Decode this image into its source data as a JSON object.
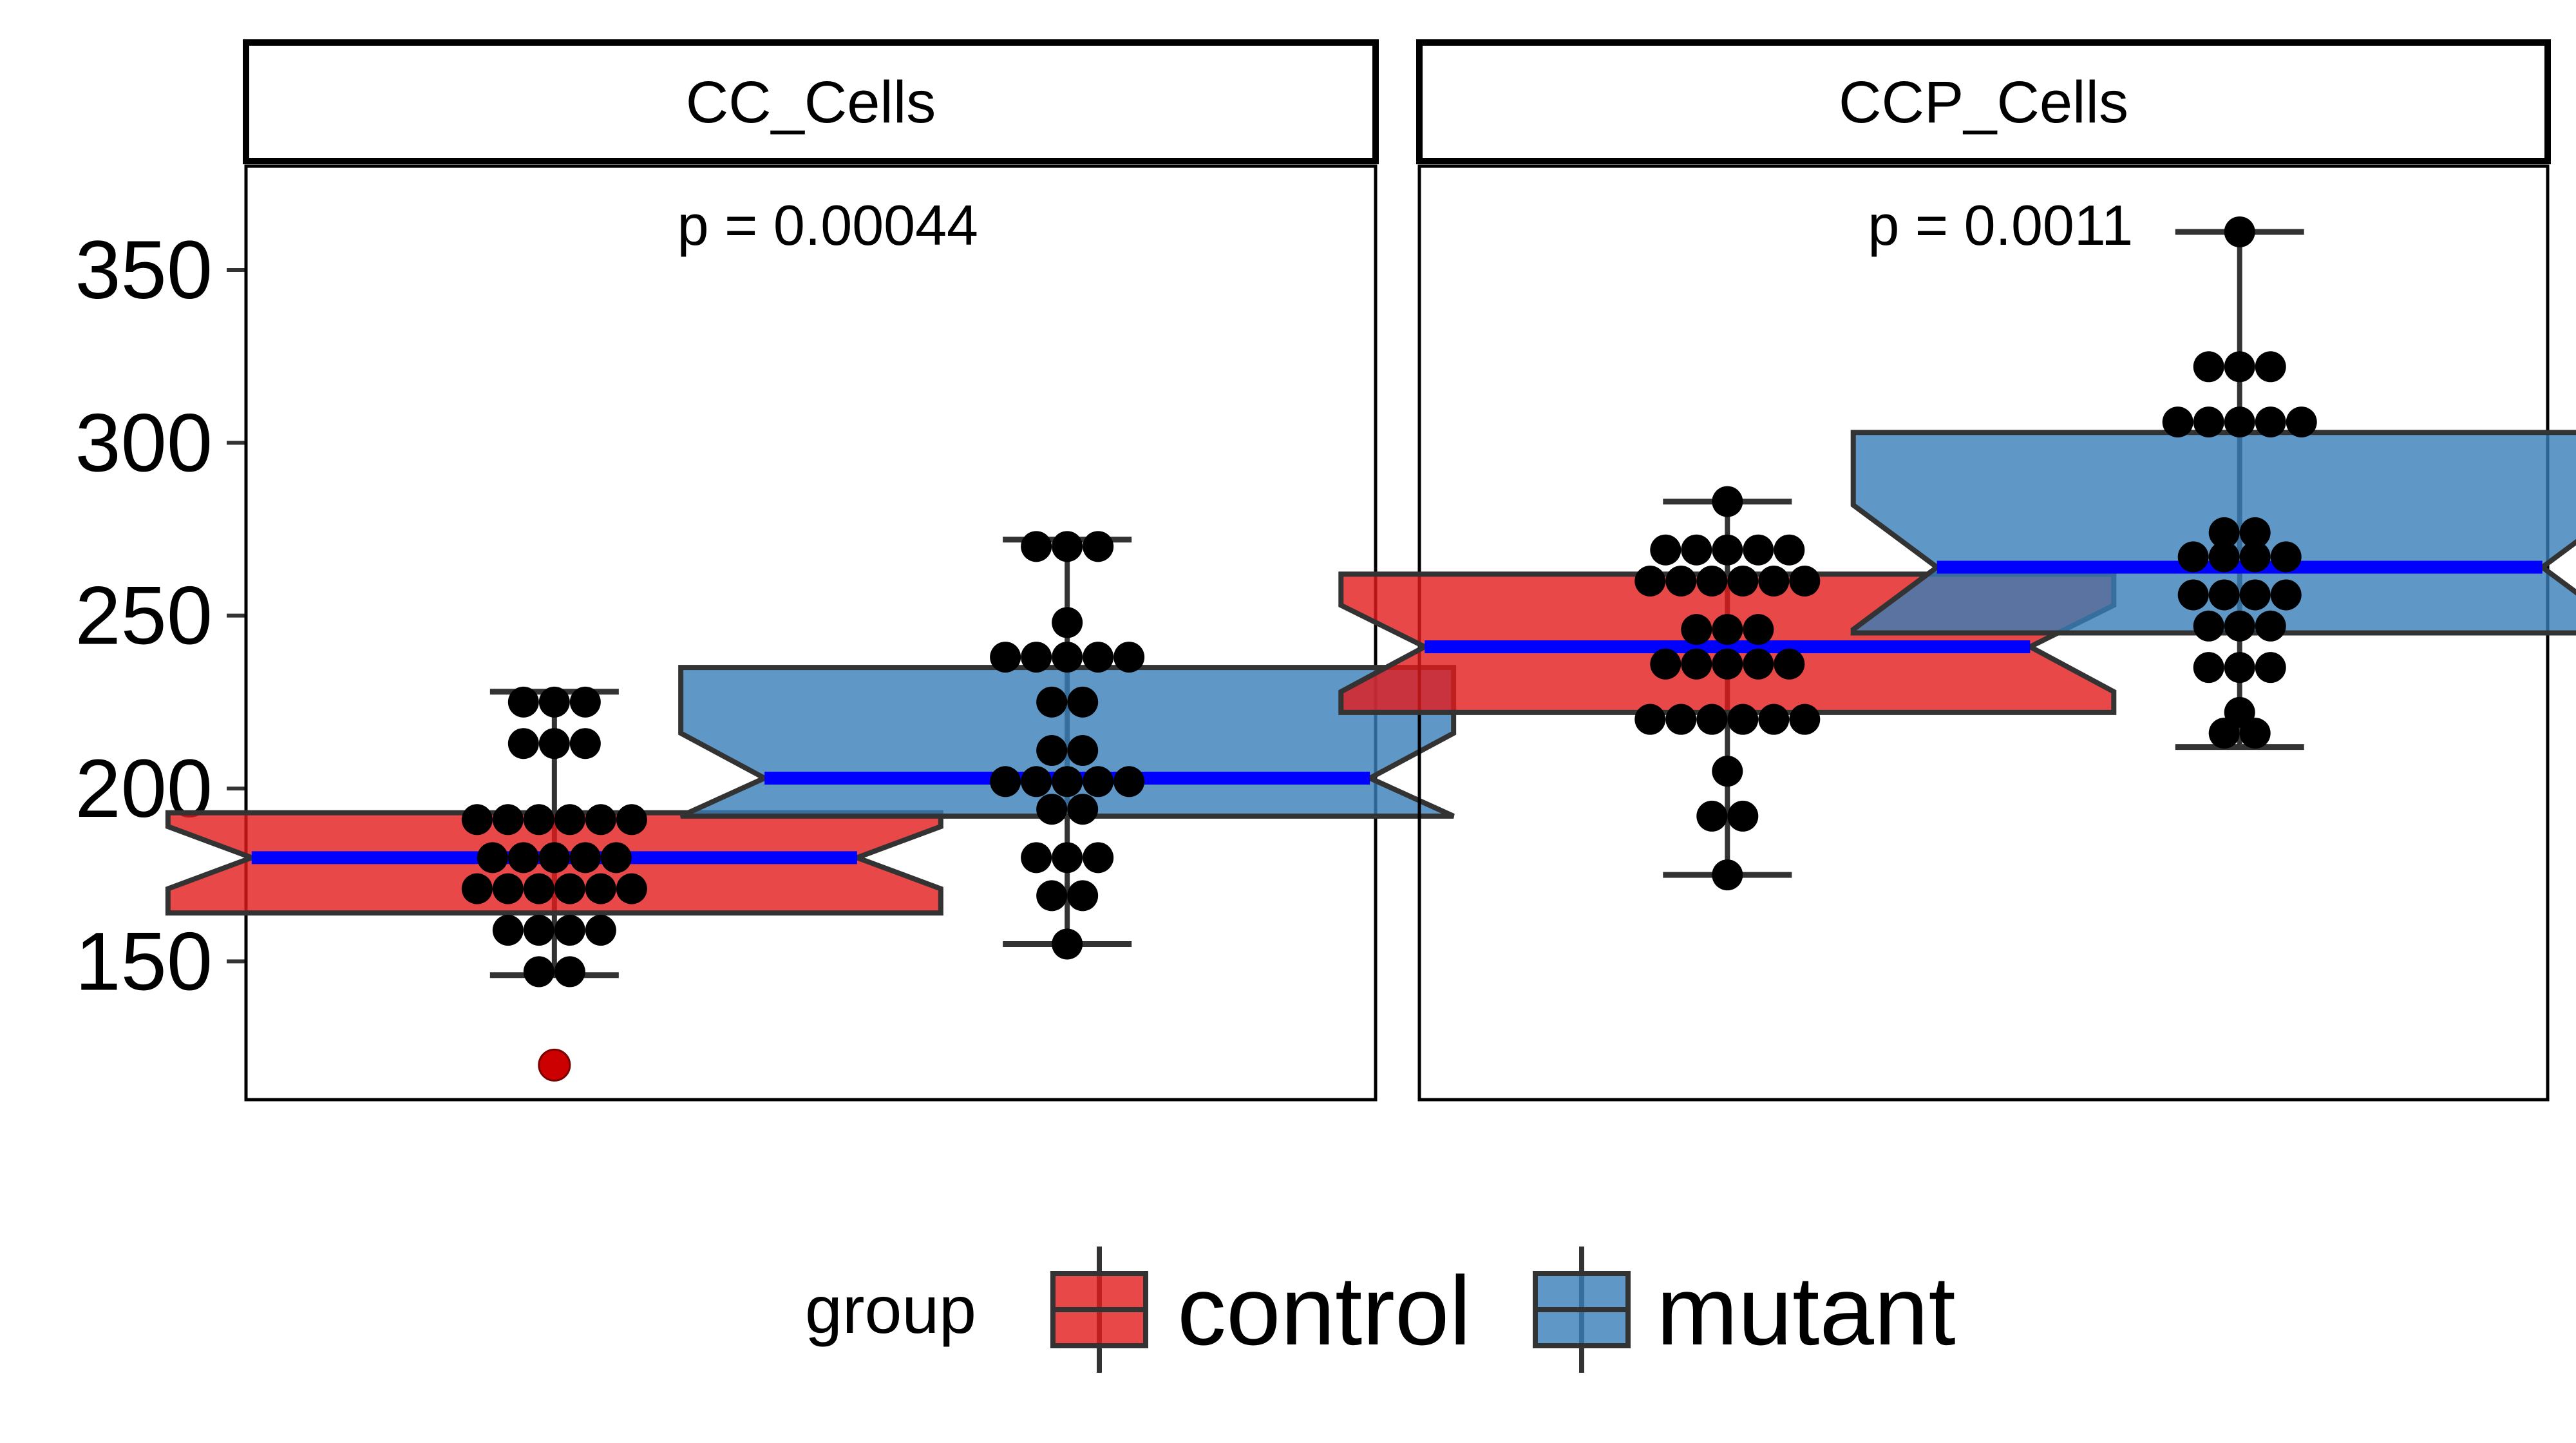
{
  "chart_data": {
    "type": "box",
    "y_ticks": [
      150,
      200,
      250,
      300,
      350
    ],
    "ylim": [
      110,
      380
    ],
    "xlabel": "",
    "ylabel": "",
    "grid": false,
    "notched": true,
    "legend": {
      "position": "bottom",
      "title": "group",
      "entries": [
        {
          "label": "control",
          "color": "#E41A1C"
        },
        {
          "label": "mutant",
          "color": "#377EB8"
        }
      ]
    },
    "colors": {
      "control": "#E41A1C",
      "mutant": "#377EB8",
      "median_line": "#0000FF",
      "outlier": "#CC0000",
      "points": "#000000"
    },
    "panels": [
      {
        "title": "CC_Cells",
        "p_label": "p = 0.00044",
        "groups": [
          {
            "name": "control",
            "whisker_low": 146,
            "q1": 164,
            "median": 180,
            "q3": 193,
            "whisker_high": 228,
            "notch_low": 171,
            "notch_high": 189,
            "outliers": [
              120
            ],
            "points": [
              {
                "y": 225,
                "n": 3
              },
              {
                "y": 213,
                "n": 3
              },
              {
                "y": 191,
                "n": 6
              },
              {
                "y": 180,
                "n": 5
              },
              {
                "y": 171,
                "n": 6
              },
              {
                "y": 159,
                "n": 4
              },
              {
                "y": 147,
                "n": 2
              }
            ]
          },
          {
            "name": "mutant",
            "whisker_low": 155,
            "q1": 192,
            "median": 203,
            "q3": 235,
            "whisker_high": 272,
            "notch_low": 192,
            "notch_high": 216,
            "outliers": [],
            "points": [
              {
                "y": 270,
                "n": 3
              },
              {
                "y": 248,
                "n": 1
              },
              {
                "y": 238,
                "n": 5
              },
              {
                "y": 225,
                "n": 2
              },
              {
                "y": 211,
                "n": 2
              },
              {
                "y": 202,
                "n": 5
              },
              {
                "y": 194,
                "n": 2
              },
              {
                "y": 180,
                "n": 3
              },
              {
                "y": 169,
                "n": 2
              },
              {
                "y": 155,
                "n": 1
              }
            ]
          }
        ]
      },
      {
        "title": "CCP_Cells",
        "p_label": "p = 0.0011",
        "groups": [
          {
            "name": "control",
            "whisker_low": 175,
            "q1": 222,
            "median": 241,
            "q3": 262,
            "whisker_high": 283,
            "notch_low": 228,
            "notch_high": 253,
            "outliers": [],
            "points": [
              {
                "y": 283,
                "n": 1
              },
              {
                "y": 269,
                "n": 5
              },
              {
                "y": 260,
                "n": 6
              },
              {
                "y": 246,
                "n": 3
              },
              {
                "y": 236,
                "n": 5
              },
              {
                "y": 220,
                "n": 6
              },
              {
                "y": 205,
                "n": 1
              },
              {
                "y": 192,
                "n": 2
              },
              {
                "y": 175,
                "n": 1
              }
            ]
          },
          {
            "name": "mutant",
            "whisker_low": 212,
            "q1": 245,
            "median": 264,
            "q3": 303,
            "whisker_high": 361,
            "notch_low": 246,
            "notch_high": 282,
            "outliers": [],
            "points": [
              {
                "y": 361,
                "n": 1
              },
              {
                "y": 322,
                "n": 3
              },
              {
                "y": 306,
                "n": 5
              },
              {
                "y": 274,
                "n": 2
              },
              {
                "y": 267,
                "n": 4
              },
              {
                "y": 256,
                "n": 4
              },
              {
                "y": 247,
                "n": 3
              },
              {
                "y": 235,
                "n": 3
              },
              {
                "y": 222,
                "n": 1
              },
              {
                "y": 216,
                "n": 2
              }
            ]
          }
        ]
      }
    ]
  }
}
